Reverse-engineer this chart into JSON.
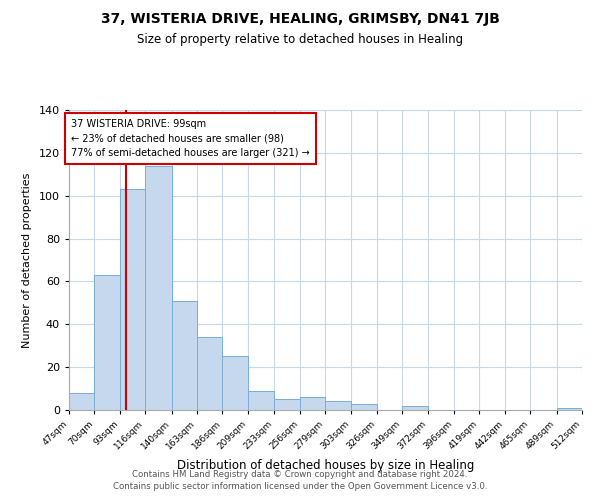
{
  "title": "37, WISTERIA DRIVE, HEALING, GRIMSBY, DN41 7JB",
  "subtitle": "Size of property relative to detached houses in Healing",
  "xlabel": "Distribution of detached houses by size in Healing",
  "ylabel": "Number of detached properties",
  "bar_color": "#c5d8ed",
  "bar_edge_color": "#7aaed4",
  "bins": [
    47,
    70,
    93,
    116,
    140,
    163,
    186,
    209,
    233,
    256,
    279,
    303,
    326,
    349,
    372,
    396,
    419,
    442,
    465,
    489,
    512
  ],
  "counts": [
    8,
    63,
    103,
    114,
    51,
    34,
    25,
    9,
    5,
    6,
    4,
    3,
    0,
    2,
    0,
    0,
    0,
    0,
    0,
    1
  ],
  "tick_labels": [
    "47sqm",
    "70sqm",
    "93sqm",
    "116sqm",
    "140sqm",
    "163sqm",
    "186sqm",
    "209sqm",
    "233sqm",
    "256sqm",
    "279sqm",
    "303sqm",
    "326sqm",
    "349sqm",
    "372sqm",
    "396sqm",
    "419sqm",
    "442sqm",
    "465sqm",
    "489sqm",
    "512sqm"
  ],
  "vline_x": 99,
  "vline_color": "#cc0000",
  "annotation_text": "37 WISTERIA DRIVE: 99sqm\n← 23% of detached houses are smaller (98)\n77% of semi-detached houses are larger (321) →",
  "annotation_box_color": "#ffffff",
  "annotation_border_color": "#cc0000",
  "ylim": [
    0,
    140
  ],
  "yticks": [
    0,
    20,
    40,
    60,
    80,
    100,
    120,
    140
  ],
  "footer1": "Contains HM Land Registry data © Crown copyright and database right 2024.",
  "footer2": "Contains public sector information licensed under the Open Government Licence v3.0.",
  "background_color": "#ffffff",
  "grid_color": "#c8d8ec"
}
